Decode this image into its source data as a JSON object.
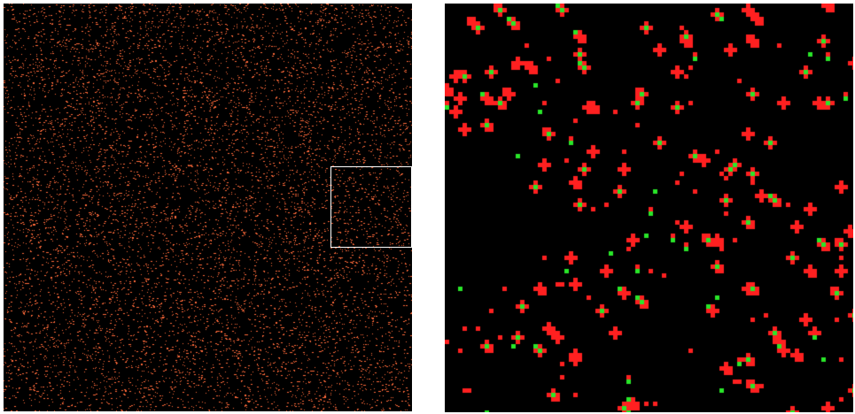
{
  "panels": {
    "overview": {
      "background": "#000000",
      "point_color": "#ff6a3a",
      "zoom_box_color": "#ffffff"
    },
    "zoom": {
      "background": "#000000",
      "point_colors": [
        "#ff2020",
        "#29e629"
      ]
    }
  }
}
